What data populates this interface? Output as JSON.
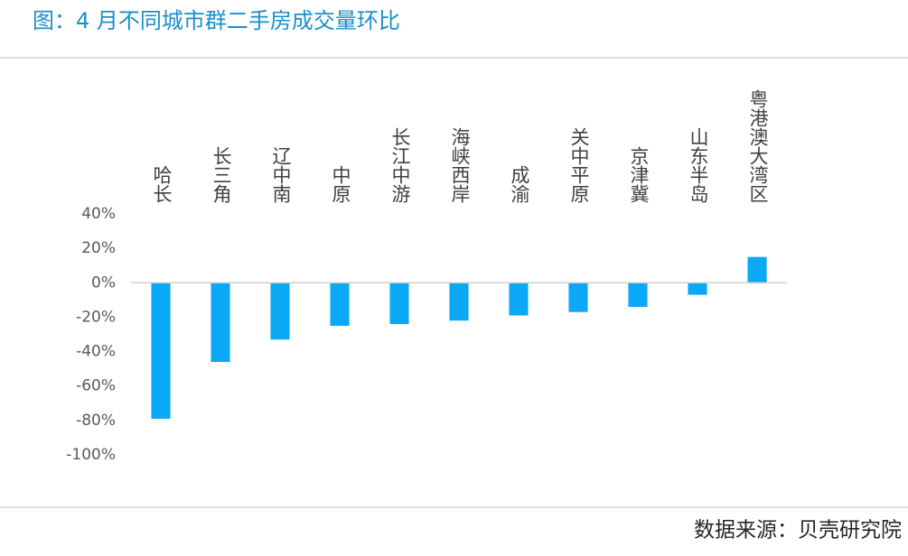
{
  "chart_data": {
    "type": "bar",
    "title": "图：4 月不同城市群二手房成交量环比",
    "source": "数据来源：贝壳研究院",
    "categories": [
      "哈长",
      "长三角",
      "辽中南",
      "中原",
      "长江中游",
      "海峡西岸",
      "成渝",
      "关中平原",
      "京津冀",
      "山东半岛",
      "粤港澳大湾区"
    ],
    "values": [
      -79,
      -46,
      -33,
      -25,
      -24,
      -22,
      -19,
      -17,
      -14,
      -7,
      15
    ],
    "color": "#0aa8f5",
    "ylim": [
      -100,
      40
    ],
    "yticks": [
      {
        "value": 40,
        "label": "40%"
      },
      {
        "value": 20,
        "label": "20%"
      },
      {
        "value": 0,
        "label": "0%"
      },
      {
        "value": -20,
        "label": "-20%"
      },
      {
        "value": -40,
        "label": "-40%"
      },
      {
        "value": -60,
        "label": "-60%"
      },
      {
        "value": -80,
        "label": "-80%"
      },
      {
        "value": -100,
        "label": "-100%"
      }
    ],
    "grid": false
  }
}
